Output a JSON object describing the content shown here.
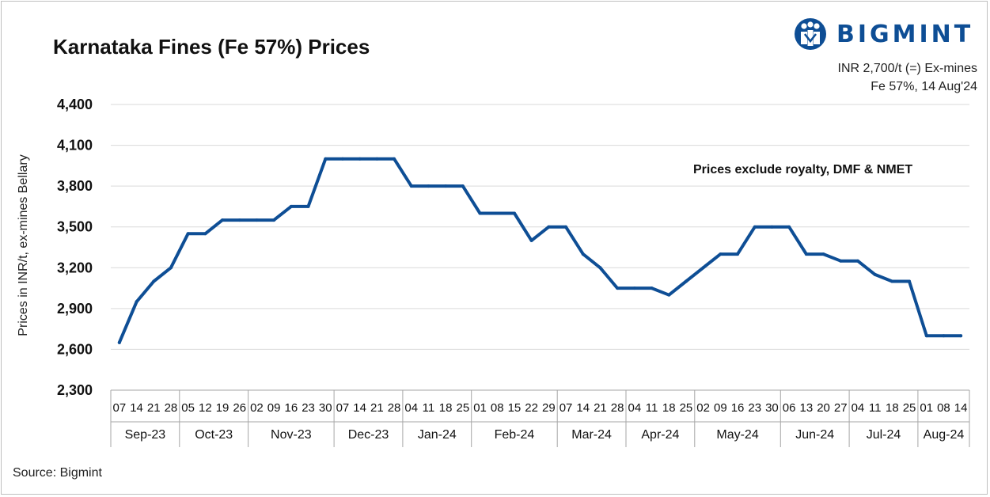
{
  "brand": {
    "name": "BIGMINT",
    "color": "#0e4e95"
  },
  "header": {
    "title": "Karnataka Fines (Fe 57%) Prices",
    "price_note_1": "INR 2,700/t (=) Ex-mines",
    "price_note_2": "Fe 57%, 14 Aug'24"
  },
  "annotation": "Prices exclude royalty, DMF & NMET",
  "footer": {
    "source": "Source: Bigmint"
  },
  "chart_data": {
    "type": "line",
    "title": "Karnataka Fines (Fe 57%) Prices",
    "ylabel": "Prices in INR/t, ex-mines Bellary",
    "xlabel": "",
    "ylim": [
      2300,
      4400
    ],
    "yticks": [
      2300,
      2600,
      2900,
      3200,
      3500,
      3800,
      4100,
      4400
    ],
    "ytick_labels": [
      "2,300",
      "2,600",
      "2,900",
      "3,200",
      "3,500",
      "3,800",
      "4,100",
      "4,400"
    ],
    "grid": "horizontal",
    "line_color": "#0e4e95",
    "months": [
      {
        "label": "Sep-23",
        "days": [
          "07",
          "14",
          "21",
          "28"
        ]
      },
      {
        "label": "Oct-23",
        "days": [
          "05",
          "12",
          "19",
          "26"
        ]
      },
      {
        "label": "Nov-23",
        "days": [
          "02",
          "09",
          "16",
          "23",
          "30"
        ]
      },
      {
        "label": "Dec-23",
        "days": [
          "07",
          "14",
          "21",
          "28"
        ]
      },
      {
        "label": "Jan-24",
        "days": [
          "04",
          "11",
          "18",
          "25"
        ]
      },
      {
        "label": "Feb-24",
        "days": [
          "01",
          "08",
          "15",
          "22",
          "29"
        ]
      },
      {
        "label": "Mar-24",
        "days": [
          "07",
          "14",
          "21",
          "28"
        ]
      },
      {
        "label": "Apr-24",
        "days": [
          "04",
          "11",
          "18",
          "25"
        ]
      },
      {
        "label": "May-24",
        "days": [
          "02",
          "09",
          "16",
          "23",
          "30"
        ]
      },
      {
        "label": "Jun-24",
        "days": [
          "06",
          "13",
          "20",
          "27"
        ]
      },
      {
        "label": "Jul-24",
        "days": [
          "04",
          "11",
          "18",
          "25"
        ]
      },
      {
        "label": "Aug-24",
        "days": [
          "01",
          "08",
          "14"
        ]
      }
    ],
    "series": [
      {
        "values": [
          2650,
          2950,
          3100,
          3200,
          3450,
          3450,
          3550,
          3550,
          3550,
          3550,
          3650,
          3650,
          4000,
          4000,
          4000,
          4000,
          4000,
          3800,
          3800,
          3800,
          3800,
          3600,
          3600,
          3600,
          3400,
          3500,
          3500,
          3300,
          3200,
          3050,
          3050,
          3050,
          3000,
          3100,
          3200,
          3300,
          3300,
          3500,
          3500,
          3500,
          3300,
          3300,
          3250,
          3250,
          3150,
          3100,
          3100,
          2700,
          2700,
          2700
        ]
      }
    ]
  }
}
